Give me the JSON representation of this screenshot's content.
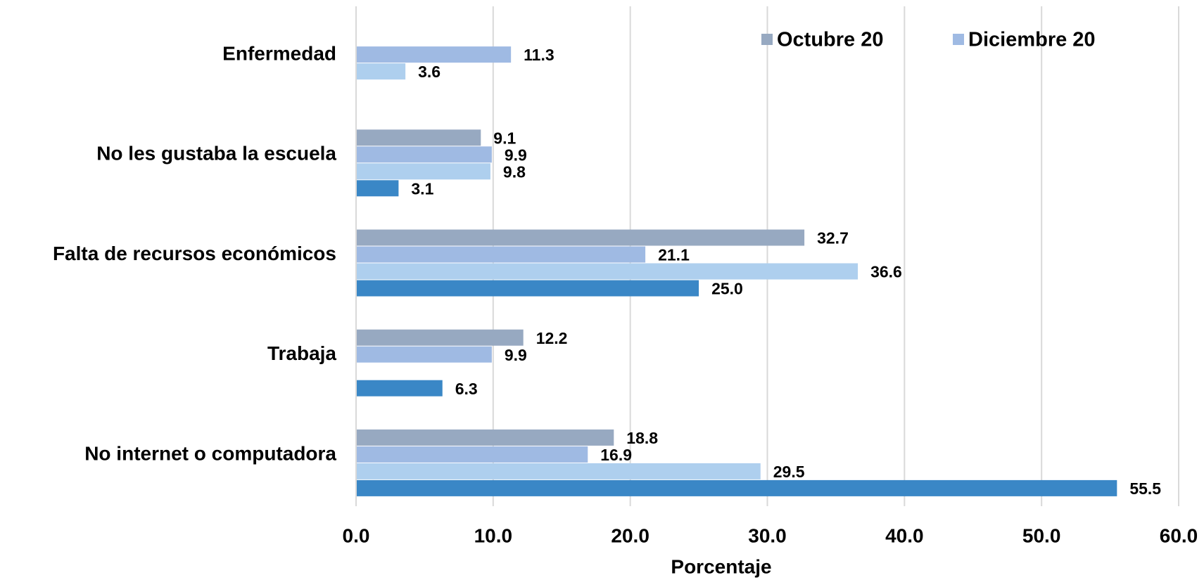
{
  "chart_data": {
    "type": "bar",
    "orientation": "horizontal",
    "x_label": "Porcentaje",
    "categories": [
      "Enfermedad",
      "No les gustaba la escuela",
      "Falta de recursos económicos",
      "Trabaja",
      "No internet o computadora"
    ],
    "series": [
      {
        "name": "Octubre 20",
        "color": "#97a9c1",
        "values": [
          null,
          9.1,
          32.7,
          12.2,
          18.8
        ],
        "value_labels": [
          null,
          "9.1",
          "32.7",
          "12.2",
          "18.8"
        ]
      },
      {
        "name": "Diciembre 20",
        "color": "#9fbae3",
        "values": [
          11.3,
          9.9,
          21.1,
          9.9,
          16.9
        ],
        "value_labels": [
          "11.3",
          "9.9",
          "21.1",
          "9.9",
          "16.9"
        ]
      },
      {
        "color": "#aecfee",
        "values": [
          3.6,
          9.8,
          36.6,
          null,
          29.5
        ],
        "value_labels": [
          "3.6",
          "9.8",
          "36.6",
          null,
          "29.5"
        ]
      },
      {
        "color": "#3a87c6",
        "values": [
          null,
          3.1,
          25.0,
          6.3,
          55.5
        ],
        "value_labels": [
          null,
          "3.1",
          "25.0",
          "6.3",
          "55.5"
        ]
      }
    ],
    "xlim": [
      0,
      60
    ],
    "xticks": [
      {
        "value": 0,
        "label": "0.0"
      },
      {
        "value": 10,
        "label": "10.0"
      },
      {
        "value": 20,
        "label": "20.0"
      },
      {
        "value": 30,
        "label": "30.0"
      },
      {
        "value": 40,
        "label": "40.0"
      },
      {
        "value": 50,
        "label": "50.0"
      },
      {
        "value": 60,
        "label": "60.0"
      }
    ],
    "grid": true,
    "legend": "top-right"
  }
}
